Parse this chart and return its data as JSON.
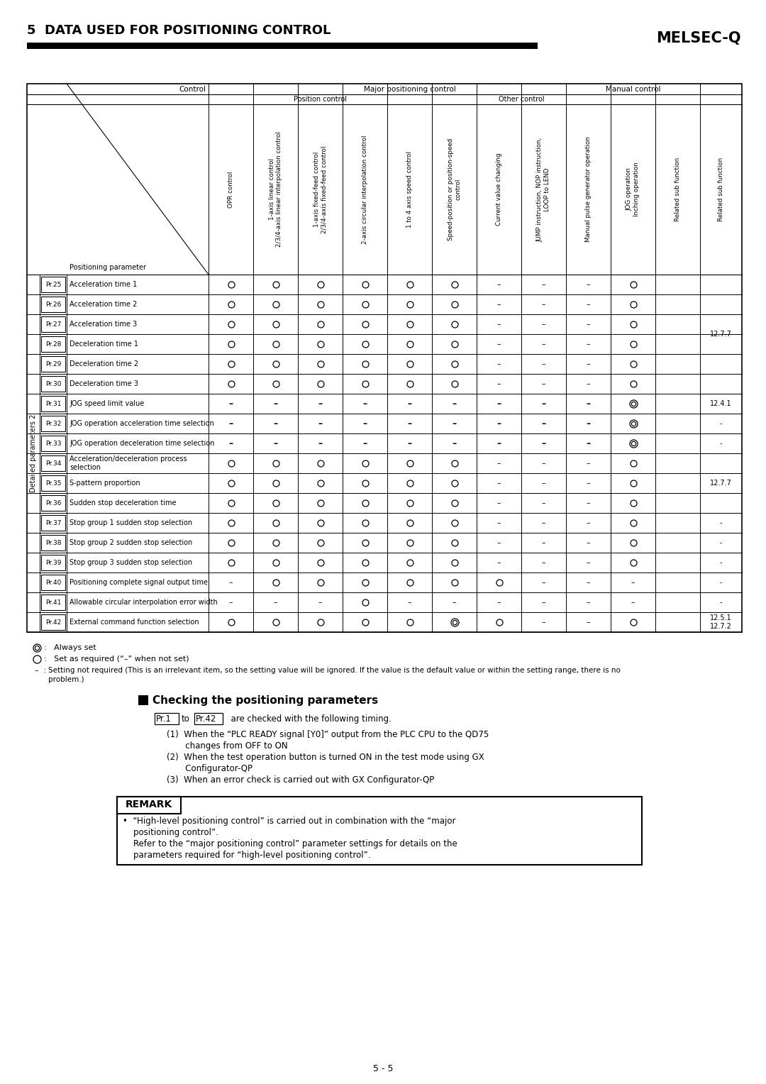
{
  "title_left": "5  DATA USED FOR POSITIONING CONTROL",
  "title_right": "MELSEC-Q",
  "page_number": "5 - 5",
  "col_headers_rot": [
    "OPR control",
    "1-axis linear control\n2/3/4-axis linear interpolation control",
    "1-axis fixed-feed control\n2/3/4-axis fixed-feed control",
    "2-axis circular interpolation control",
    "1 to 4 axis speed control",
    "Speed-position or position-speed\ncontrol",
    "Current value changing",
    "JUMP instruction, NOP instruction,\nLOOP to LEND",
    "Manual pulse generator operation",
    "JOG operation\nInching operation",
    "Related sub function"
  ],
  "row_group_label": "Detailed parameters 2",
  "rows": [
    {
      "pr": "Pr.25",
      "name": "Acceleration time 1",
      "vals": [
        "O",
        "O",
        "O",
        "O",
        "O",
        "O",
        "-",
        "-",
        "-",
        "O",
        ""
      ]
    },
    {
      "pr": "Pr.26",
      "name": "Acceleration time 2",
      "vals": [
        "O",
        "O",
        "O",
        "O",
        "O",
        "O",
        "-",
        "-",
        "-",
        "O",
        ""
      ]
    },
    {
      "pr": "Pr.27",
      "name": "Acceleration time 3",
      "vals": [
        "O",
        "O",
        "O",
        "O",
        "O",
        "O",
        "-",
        "-",
        "-",
        "O",
        ""
      ]
    },
    {
      "pr": "Pr.28",
      "name": "Deceleration time 1",
      "vals": [
        "O",
        "O",
        "O",
        "O",
        "O",
        "O",
        "-",
        "-",
        "-",
        "O",
        ""
      ]
    },
    {
      "pr": "Pr.29",
      "name": "Deceleration time 2",
      "vals": [
        "O",
        "O",
        "O",
        "O",
        "O",
        "O",
        "-",
        "-",
        "-",
        "O",
        ""
      ]
    },
    {
      "pr": "Pr.30",
      "name": "Deceleration time 3",
      "vals": [
        "O",
        "O",
        "O",
        "O",
        "O",
        "O",
        "-",
        "-",
        "-",
        "O",
        ""
      ]
    },
    {
      "pr": "Pr.31",
      "name": "JOG speed limit value",
      "vals": [
        "-",
        "-",
        "-",
        "-",
        "-",
        "-",
        "-",
        "-",
        "-",
        "OO",
        ""
      ]
    },
    {
      "pr": "Pr.32",
      "name": "JOG operation acceleration time selection",
      "vals": [
        "-",
        "-",
        "-",
        "-",
        "-",
        "-",
        "-",
        "-",
        "-",
        "OO",
        ""
      ]
    },
    {
      "pr": "Pr.33",
      "name": "JOG operation deceleration time selection",
      "vals": [
        "-",
        "-",
        "-",
        "-",
        "-",
        "-",
        "-",
        "-",
        "-",
        "OO",
        ""
      ]
    },
    {
      "pr": "Pr.34",
      "name": "Acceleration/deceleration process\nselection",
      "vals": [
        "O",
        "O",
        "O",
        "O",
        "O",
        "O",
        "-",
        "-",
        "-",
        "O",
        ""
      ]
    },
    {
      "pr": "Pr.35",
      "name": "S-pattern proportion",
      "vals": [
        "O",
        "O",
        "O",
        "O",
        "O",
        "O",
        "-",
        "-",
        "-",
        "O",
        ""
      ]
    },
    {
      "pr": "Pr.36",
      "name": "Sudden stop deceleration time",
      "vals": [
        "O",
        "O",
        "O",
        "O",
        "O",
        "O",
        "-",
        "-",
        "-",
        "O",
        ""
      ]
    },
    {
      "pr": "Pr.37",
      "name": "Stop group 1 sudden stop selection",
      "vals": [
        "O",
        "O",
        "O",
        "O",
        "O",
        "O",
        "-",
        "-",
        "-",
        "O",
        ""
      ]
    },
    {
      "pr": "Pr.38",
      "name": "Stop group 2 sudden stop selection",
      "vals": [
        "O",
        "O",
        "O",
        "O",
        "O",
        "O",
        "-",
        "-",
        "-",
        "O",
        ""
      ]
    },
    {
      "pr": "Pr.39",
      "name": "Stop group 3 sudden stop selection",
      "vals": [
        "O",
        "O",
        "O",
        "O",
        "O",
        "O",
        "-",
        "-",
        "-",
        "O",
        ""
      ]
    },
    {
      "pr": "Pr.40",
      "name": "Positioning complete signal output time",
      "vals": [
        "-",
        "O",
        "O",
        "O",
        "O",
        "O",
        "O",
        "-",
        "-",
        "-",
        ""
      ]
    },
    {
      "pr": "Pr.41",
      "name": "Allowable circular interpolation error width",
      "vals": [
        "-",
        "-",
        "-",
        "O",
        "-",
        "-",
        "-",
        "-",
        "-",
        "-",
        ""
      ]
    },
    {
      "pr": "Pr.42",
      "name": "External command function selection",
      "vals": [
        "O",
        "O",
        "O",
        "O",
        "O",
        "OO",
        "O",
        "-",
        "-",
        "O",
        ""
      ]
    }
  ],
  "ref_spans": [
    [
      0,
      5,
      "12.7.7"
    ],
    [
      6,
      6,
      "12.4.1"
    ],
    [
      7,
      7,
      "-"
    ],
    [
      8,
      8,
      "-"
    ],
    [
      9,
      11,
      "12.7.7"
    ],
    [
      12,
      12,
      "-"
    ],
    [
      13,
      13,
      "-"
    ],
    [
      14,
      14,
      "-"
    ],
    [
      15,
      15,
      "-"
    ],
    [
      16,
      16,
      "-"
    ],
    [
      17,
      17,
      "12.5.1\n12.7.2"
    ]
  ],
  "pr31_dash": true,
  "pr32_dash": true,
  "pr33_dash": true
}
